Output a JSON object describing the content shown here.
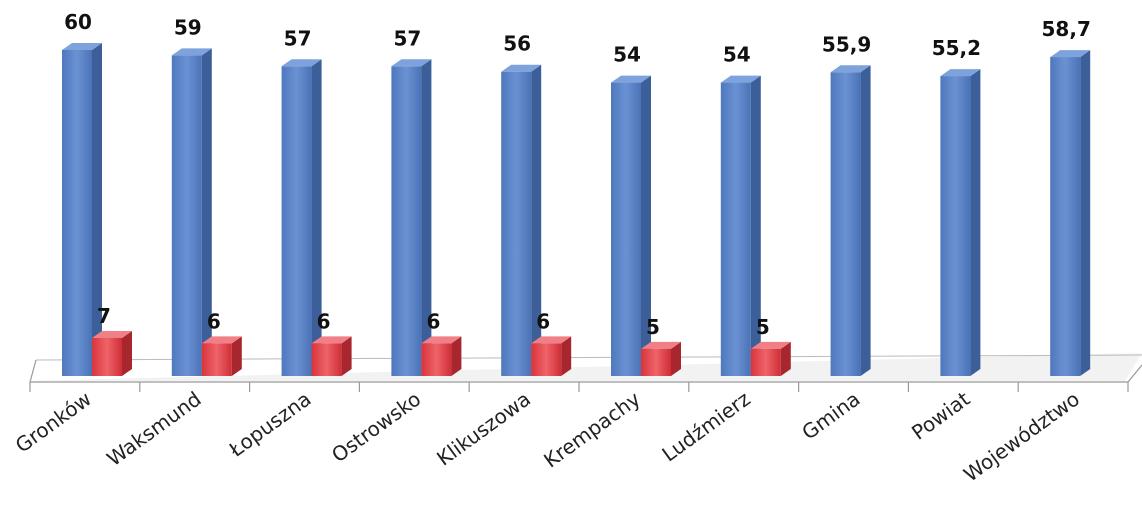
{
  "chart_data": {
    "type": "bar",
    "categories": [
      "Gronków",
      "Waksmund",
      "Łopuszna",
      "Ostrowsko",
      "Klikuszowa",
      "Krempachy",
      "Ludźmierz",
      "Gmina",
      "Powiat",
      "Województwo"
    ],
    "series": [
      {
        "values": [
          60,
          59,
          57,
          57,
          56,
          54,
          54,
          55.9,
          55.2,
          58.7
        ],
        "labels": [
          "60",
          "59",
          "57",
          "57",
          "56",
          "54",
          "54",
          "55,9",
          "55,2",
          "58,7"
        ],
        "color": "#5b82c4"
      },
      {
        "values": [
          7,
          6,
          6,
          6,
          6,
          5,
          5,
          null,
          null,
          null
        ],
        "labels": [
          "7",
          "6",
          "6",
          "6",
          "6",
          "5",
          "5",
          "",
          "",
          ""
        ],
        "color": "#e0454c"
      }
    ],
    "title": "",
    "xlabel": "",
    "ylabel": "",
    "ylim": [
      0,
      60
    ],
    "grid": false,
    "legend": "none",
    "style": "3d-clustered-column"
  }
}
